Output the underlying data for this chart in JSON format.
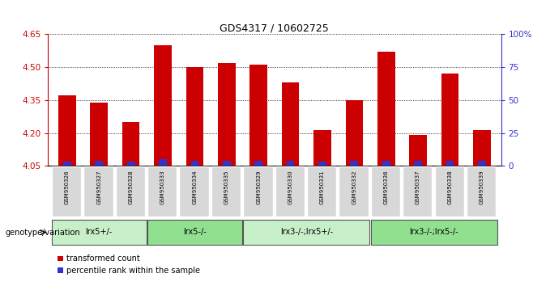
{
  "title": "GDS4317 / 10602725",
  "samples": [
    "GSM950326",
    "GSM950327",
    "GSM950328",
    "GSM950333",
    "GSM950334",
    "GSM950335",
    "GSM950329",
    "GSM950330",
    "GSM950331",
    "GSM950332",
    "GSM950336",
    "GSM950337",
    "GSM950338",
    "GSM950339"
  ],
  "transformed_counts": [
    4.37,
    4.34,
    4.25,
    4.6,
    4.5,
    4.52,
    4.51,
    4.43,
    4.215,
    4.35,
    4.57,
    4.19,
    4.47,
    4.215
  ],
  "percentile_ranks": [
    3,
    4,
    3,
    5,
    4,
    4,
    4,
    4,
    3,
    4,
    4,
    4,
    4,
    4
  ],
  "ylim_left": [
    4.05,
    4.65
  ],
  "ylim_right": [
    0,
    100
  ],
  "yticks_left": [
    4.05,
    4.2,
    4.35,
    4.5,
    4.65
  ],
  "yticks_right": [
    0,
    25,
    50,
    75,
    100
  ],
  "ytick_labels_left": [
    "4.05",
    "4.20",
    "4.35",
    "4.50",
    "4.65"
  ],
  "ytick_labels_right": [
    "0",
    "25",
    "50",
    "75",
    "100%"
  ],
  "groups": [
    {
      "label": "lrx5+/-",
      "start": 0,
      "end": 3,
      "color": "#c8f0c8"
    },
    {
      "label": "lrx5-/-",
      "start": 3,
      "end": 6,
      "color": "#90e090"
    },
    {
      "label": "lrx3-/-;lrx5+/-",
      "start": 6,
      "end": 10,
      "color": "#c8f0c8"
    },
    {
      "label": "lrx3-/-;lrx5-/-",
      "start": 10,
      "end": 14,
      "color": "#90e090"
    }
  ],
  "bar_color_red": "#cc0000",
  "bar_color_blue": "#3333cc",
  "bar_width": 0.55,
  "left_axis_color": "#cc0000",
  "right_axis_color": "#3333cc",
  "background_xticklabels": "#d8d8d8",
  "legend_red_label": "transformed count",
  "legend_blue_label": "percentile rank within the sample",
  "genotype_label": "genotype/variation",
  "baseline": 4.05,
  "n_groups": [
    3,
    3,
    4,
    4
  ]
}
